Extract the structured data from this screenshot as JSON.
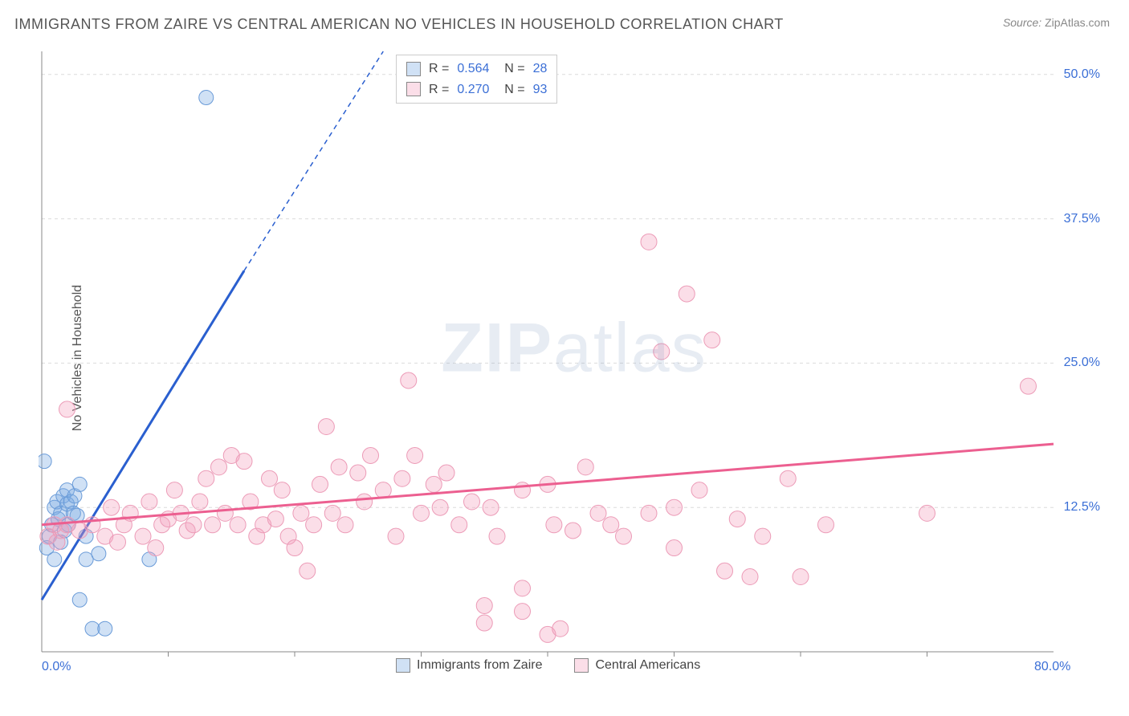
{
  "title": "IMMIGRANTS FROM ZAIRE VS CENTRAL AMERICAN NO VEHICLES IN HOUSEHOLD CORRELATION CHART",
  "source_label": "Source:",
  "source_text": "ZipAtlas.com",
  "watermark": {
    "bold": "ZIP",
    "rest": "atlas"
  },
  "ylabel": "No Vehicles in Household",
  "chart": {
    "type": "scatter",
    "xlim": [
      0,
      80
    ],
    "ylim": [
      0,
      52
    ],
    "background_color": "#ffffff",
    "grid_color": "#dcdcdc",
    "grid_dash": "4,4",
    "axis_color": "#888888",
    "x_ticks": [
      {
        "v": 0.0,
        "label": "0.0%"
      },
      {
        "v": 80.0,
        "label": "80.0%"
      }
    ],
    "x_minor_ticks": [
      10,
      20,
      30,
      40,
      50,
      60,
      70
    ],
    "y_ticks": [
      {
        "v": 12.5,
        "label": "12.5%"
      },
      {
        "v": 25.0,
        "label": "25.0%"
      },
      {
        "v": 37.5,
        "label": "37.5%"
      },
      {
        "v": 50.0,
        "label": "50.0%"
      }
    ],
    "series": [
      {
        "id": "zaire",
        "name": "Immigrants from Zaire",
        "color_fill": "rgba(120,168,226,0.35)",
        "color_stroke": "#6a9bd8",
        "marker_radius": 9,
        "trend_color": "#2a5fcf",
        "trend_width": 3,
        "trend_start": {
          "x": 0.0,
          "y": 4.5
        },
        "trend_solid_end": {
          "x": 16.0,
          "y": 33.0
        },
        "trend_dash_end": {
          "x": 27.0,
          "y": 52.0
        },
        "R": "0.564",
        "N": "28",
        "points": [
          {
            "x": 0.2,
            "y": 16.5
          },
          {
            "x": 0.4,
            "y": 9.0
          },
          {
            "x": 0.6,
            "y": 10.0
          },
          {
            "x": 0.8,
            "y": 11.0
          },
          {
            "x": 1.0,
            "y": 12.5
          },
          {
            "x": 1.0,
            "y": 8.0
          },
          {
            "x": 1.2,
            "y": 13.0
          },
          {
            "x": 1.3,
            "y": 11.5
          },
          {
            "x": 1.5,
            "y": 12.0
          },
          {
            "x": 1.5,
            "y": 9.5
          },
          {
            "x": 1.7,
            "y": 13.5
          },
          {
            "x": 1.8,
            "y": 10.5
          },
          {
            "x": 2.0,
            "y": 12.8
          },
          {
            "x": 2.0,
            "y": 14.0
          },
          {
            "x": 2.1,
            "y": 11.0
          },
          {
            "x": 2.3,
            "y": 13.0
          },
          {
            "x": 2.5,
            "y": 12.0
          },
          {
            "x": 2.6,
            "y": 13.5
          },
          {
            "x": 2.8,
            "y": 11.8
          },
          {
            "x": 3.0,
            "y": 14.5
          },
          {
            "x": 3.5,
            "y": 10.0
          },
          {
            "x": 3.5,
            "y": 8.0
          },
          {
            "x": 4.5,
            "y": 8.5
          },
          {
            "x": 3.0,
            "y": 4.5
          },
          {
            "x": 4.0,
            "y": 2.0
          },
          {
            "x": 5.0,
            "y": 2.0
          },
          {
            "x": 8.5,
            "y": 8.0
          },
          {
            "x": 13.0,
            "y": 48.0
          }
        ]
      },
      {
        "id": "central",
        "name": "Central Americans",
        "color_fill": "rgba(244,160,188,0.35)",
        "color_stroke": "#ec9bb7",
        "marker_radius": 10,
        "trend_color": "#ec5f90",
        "trend_width": 3,
        "trend_start": {
          "x": 0.0,
          "y": 11.0
        },
        "trend_solid_end": {
          "x": 80.0,
          "y": 18.0
        },
        "trend_dash_end": null,
        "R": "0.270",
        "N": "93",
        "points": [
          {
            "x": 0.5,
            "y": 10.0
          },
          {
            "x": 1.0,
            "y": 11.0
          },
          {
            "x": 1.2,
            "y": 9.5
          },
          {
            "x": 1.5,
            "y": 10.5
          },
          {
            "x": 2.0,
            "y": 21.0
          },
          {
            "x": 2.0,
            "y": 11.0
          },
          {
            "x": 3.0,
            "y": 10.5
          },
          {
            "x": 4.0,
            "y": 11.0
          },
          {
            "x": 5.0,
            "y": 10.0
          },
          {
            "x": 5.5,
            "y": 12.5
          },
          {
            "x": 6.0,
            "y": 9.5
          },
          {
            "x": 6.5,
            "y": 11.0
          },
          {
            "x": 7.0,
            "y": 12.0
          },
          {
            "x": 8.0,
            "y": 10.0
          },
          {
            "x": 8.5,
            "y": 13.0
          },
          {
            "x": 9.0,
            "y": 9.0
          },
          {
            "x": 9.5,
            "y": 11.0
          },
          {
            "x": 10.0,
            "y": 11.5
          },
          {
            "x": 10.5,
            "y": 14.0
          },
          {
            "x": 11.0,
            "y": 12.0
          },
          {
            "x": 11.5,
            "y": 10.5
          },
          {
            "x": 12.0,
            "y": 11.0
          },
          {
            "x": 12.5,
            "y": 13.0
          },
          {
            "x": 13.0,
            "y": 15.0
          },
          {
            "x": 13.5,
            "y": 11.0
          },
          {
            "x": 14.0,
            "y": 16.0
          },
          {
            "x": 14.5,
            "y": 12.0
          },
          {
            "x": 15.0,
            "y": 17.0
          },
          {
            "x": 15.5,
            "y": 11.0
          },
          {
            "x": 16.0,
            "y": 16.5
          },
          {
            "x": 16.5,
            "y": 13.0
          },
          {
            "x": 17.0,
            "y": 10.0
          },
          {
            "x": 17.5,
            "y": 11.0
          },
          {
            "x": 18.0,
            "y": 15.0
          },
          {
            "x": 18.5,
            "y": 11.5
          },
          {
            "x": 19.0,
            "y": 14.0
          },
          {
            "x": 19.5,
            "y": 10.0
          },
          {
            "x": 20.0,
            "y": 9.0
          },
          {
            "x": 20.5,
            "y": 12.0
          },
          {
            "x": 21.0,
            "y": 7.0
          },
          {
            "x": 21.5,
            "y": 11.0
          },
          {
            "x": 22.0,
            "y": 14.5
          },
          {
            "x": 22.5,
            "y": 19.5
          },
          {
            "x": 23.0,
            "y": 12.0
          },
          {
            "x": 23.5,
            "y": 16.0
          },
          {
            "x": 24.0,
            "y": 11.0
          },
          {
            "x": 25.0,
            "y": 15.5
          },
          {
            "x": 25.5,
            "y": 13.0
          },
          {
            "x": 26.0,
            "y": 17.0
          },
          {
            "x": 27.0,
            "y": 14.0
          },
          {
            "x": 28.0,
            "y": 10.0
          },
          {
            "x": 28.5,
            "y": 15.0
          },
          {
            "x": 29.0,
            "y": 23.5
          },
          {
            "x": 29.5,
            "y": 17.0
          },
          {
            "x": 30.0,
            "y": 12.0
          },
          {
            "x": 31.0,
            "y": 14.5
          },
          {
            "x": 31.5,
            "y": 12.5
          },
          {
            "x": 32.0,
            "y": 15.5
          },
          {
            "x": 33.0,
            "y": 11.0
          },
          {
            "x": 34.0,
            "y": 13.0
          },
          {
            "x": 35.0,
            "y": 2.5
          },
          {
            "x": 35.0,
            "y": 4.0
          },
          {
            "x": 35.5,
            "y": 12.5
          },
          {
            "x": 36.0,
            "y": 10.0
          },
          {
            "x": 38.0,
            "y": 3.5
          },
          {
            "x": 38.0,
            "y": 14.0
          },
          {
            "x": 38.0,
            "y": 5.5
          },
          {
            "x": 40.0,
            "y": 1.5
          },
          {
            "x": 40.0,
            "y": 14.5
          },
          {
            "x": 40.5,
            "y": 11.0
          },
          {
            "x": 41.0,
            "y": 2.0
          },
          {
            "x": 42.0,
            "y": 10.5
          },
          {
            "x": 43.0,
            "y": 16.0
          },
          {
            "x": 44.0,
            "y": 12.0
          },
          {
            "x": 45.0,
            "y": 11.0
          },
          {
            "x": 46.0,
            "y": 10.0
          },
          {
            "x": 48.0,
            "y": 35.5
          },
          {
            "x": 48.0,
            "y": 12.0
          },
          {
            "x": 49.0,
            "y": 26.0
          },
          {
            "x": 50.0,
            "y": 9.0
          },
          {
            "x": 50.0,
            "y": 12.5
          },
          {
            "x": 51.0,
            "y": 31.0
          },
          {
            "x": 52.0,
            "y": 14.0
          },
          {
            "x": 53.0,
            "y": 27.0
          },
          {
            "x": 54.0,
            "y": 7.0
          },
          {
            "x": 55.0,
            "y": 11.5
          },
          {
            "x": 56.0,
            "y": 6.5
          },
          {
            "x": 57.0,
            "y": 10.0
          },
          {
            "x": 59.0,
            "y": 15.0
          },
          {
            "x": 60.0,
            "y": 6.5
          },
          {
            "x": 62.0,
            "y": 11.0
          },
          {
            "x": 70.0,
            "y": 12.0
          },
          {
            "x": 78.0,
            "y": 23.0
          }
        ]
      }
    ]
  },
  "stats_box_labels": {
    "R": "R =",
    "N": "N ="
  },
  "legend": {
    "swatch_border": "#888"
  }
}
